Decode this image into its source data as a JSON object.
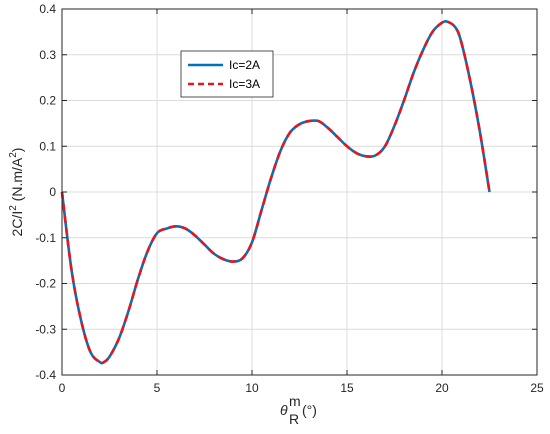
{
  "chart_data": {
    "type": "line",
    "ylabel": {
      "main": "2C/I",
      "sup": "2",
      "unit_open": " (N.m/A",
      "unit_sup": "2",
      "unit_close": ")"
    },
    "xlabel": {
      "sym": "θ",
      "sub": "R",
      "sup": "m",
      "unit": "(°)"
    },
    "xlim": [
      0,
      25
    ],
    "ylim": [
      -0.4,
      0.4
    ],
    "xticks": [
      0,
      5,
      10,
      15,
      20,
      25
    ],
    "xtick_labels": [
      "0",
      "5",
      "10",
      "15",
      "20",
      "25"
    ],
    "yticks": [
      -0.4,
      -0.3,
      -0.2,
      -0.1,
      0,
      0.1,
      0.2,
      0.3,
      0.4
    ],
    "ytick_labels": [
      "-0.4",
      "-0.3",
      "-0.2",
      "-0.1",
      "0",
      "0.1",
      "0.2",
      "0.3",
      "0.4"
    ],
    "grid": true,
    "legend_position": "upper-left",
    "series": [
      {
        "name": "Ic=2A",
        "color": "#0072BD",
        "style": "solid",
        "x": [
          0,
          0.5,
          1,
          1.5,
          2,
          2.2,
          2.5,
          3,
          3.5,
          4,
          4.5,
          5,
          5.5,
          6,
          6.5,
          7,
          7.5,
          8,
          8.5,
          9,
          9.5,
          10,
          10.5,
          11,
          11.5,
          12,
          12.5,
          13,
          13.5,
          14,
          14.5,
          15,
          15.5,
          16,
          16.5,
          17,
          17.5,
          18,
          18.5,
          19,
          19.5,
          20,
          20.3,
          20.7,
          21,
          21.5,
          22,
          22.5
        ],
        "y": [
          0,
          -0.17,
          -0.28,
          -0.35,
          -0.372,
          -0.372,
          -0.36,
          -0.32,
          -0.26,
          -0.19,
          -0.13,
          -0.09,
          -0.08,
          -0.075,
          -0.08,
          -0.095,
          -0.115,
          -0.135,
          -0.147,
          -0.152,
          -0.145,
          -0.11,
          -0.04,
          0.03,
          0.09,
          0.13,
          0.148,
          0.155,
          0.155,
          0.14,
          0.12,
          0.1,
          0.085,
          0.078,
          0.08,
          0.1,
          0.145,
          0.2,
          0.26,
          0.31,
          0.35,
          0.37,
          0.372,
          0.36,
          0.33,
          0.24,
          0.13,
          0
        ]
      },
      {
        "name": "Ic=3A",
        "color": "#E8161C",
        "style": "dashed",
        "x": [
          0,
          0.5,
          1,
          1.5,
          2,
          2.2,
          2.5,
          3,
          3.5,
          4,
          4.5,
          5,
          5.5,
          6,
          6.5,
          7,
          7.5,
          8,
          8.5,
          9,
          9.5,
          10,
          10.5,
          11,
          11.5,
          12,
          12.5,
          13,
          13.5,
          14,
          14.5,
          15,
          15.5,
          16,
          16.5,
          17,
          17.5,
          18,
          18.5,
          19,
          19.5,
          20,
          20.3,
          20.7,
          21,
          21.5,
          22,
          22.5
        ],
        "y": [
          0,
          -0.17,
          -0.28,
          -0.35,
          -0.372,
          -0.372,
          -0.36,
          -0.32,
          -0.26,
          -0.19,
          -0.13,
          -0.09,
          -0.08,
          -0.075,
          -0.08,
          -0.095,
          -0.115,
          -0.135,
          -0.147,
          -0.152,
          -0.145,
          -0.11,
          -0.04,
          0.03,
          0.09,
          0.13,
          0.148,
          0.155,
          0.155,
          0.14,
          0.12,
          0.1,
          0.085,
          0.078,
          0.08,
          0.1,
          0.145,
          0.2,
          0.26,
          0.31,
          0.35,
          0.37,
          0.372,
          0.36,
          0.33,
          0.24,
          0.13,
          0
        ]
      }
    ]
  }
}
